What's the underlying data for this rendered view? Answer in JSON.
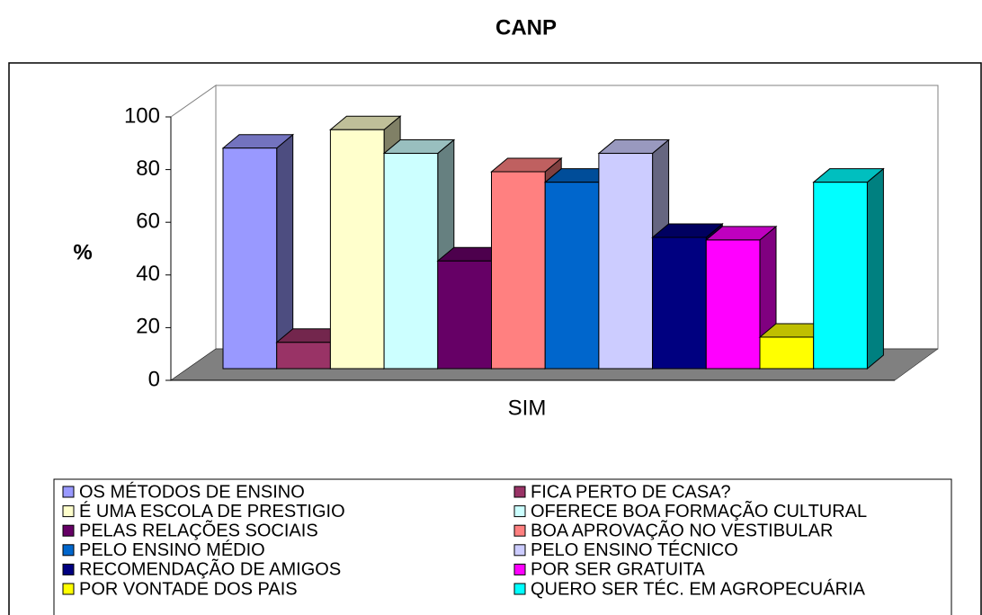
{
  "chart_data": {
    "type": "bar3d",
    "title": "CANP",
    "y_label": "%",
    "categories": [
      "SIM"
    ],
    "ylim": [
      0,
      100
    ],
    "yticks": [
      0,
      20,
      40,
      60,
      80,
      100
    ],
    "legend": "bottom",
    "series": [
      {
        "name": "OS MÉTODOS DE ENSINO",
        "color": "#9999ff",
        "values": [
          84
        ]
      },
      {
        "name": "FICA PERTO DE CASA?",
        "color": "#993366",
        "values": [
          10
        ]
      },
      {
        "name": "É UMA ESCOLA DE PRESTIGIO",
        "color": "#ffffcc",
        "values": [
          91
        ]
      },
      {
        "name": "OFERECE BOA FORMAÇÃO CULTURAL",
        "color": "#ccffff",
        "values": [
          82
        ]
      },
      {
        "name": "PELAS RELAÇÕES SOCIAIS",
        "color": "#660066",
        "values": [
          41
        ]
      },
      {
        "name": "BOA APROVAÇÃO NO VESTIBULAR",
        "color": "#ff8080",
        "values": [
          75
        ]
      },
      {
        "name": "PELO ENSINO MÉDIO",
        "color": "#0066cc",
        "values": [
          71
        ]
      },
      {
        "name": "PELO ENSINO TÉCNICO",
        "color": "#ccccff",
        "values": [
          82
        ]
      },
      {
        "name": "RECOMENDAÇÃO DE AMIGOS",
        "color": "#000080",
        "values": [
          50
        ]
      },
      {
        "name": "POR SER GRATUITA",
        "color": "#ff00ff",
        "values": [
          49
        ]
      },
      {
        "name": "POR VONTADE DOS PAIS",
        "color": "#ffff00",
        "values": [
          12
        ]
      },
      {
        "name": "QUERO SER TÉC. EM AGROPECUÁRIA",
        "color": "#00ffff",
        "values": [
          71
        ]
      }
    ]
  }
}
